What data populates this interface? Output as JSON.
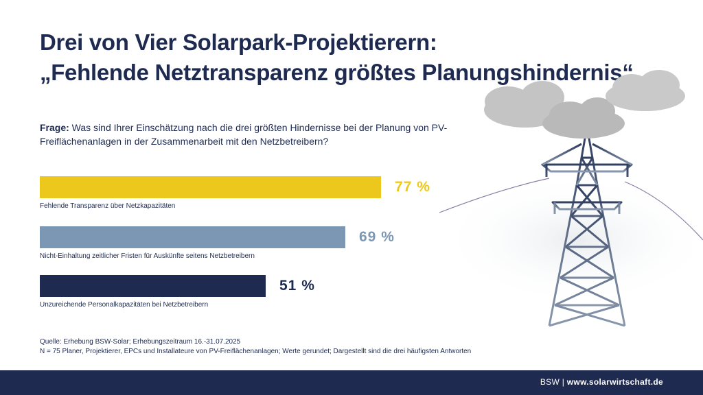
{
  "title": {
    "line1": "Drei von Vier Solarpark-Projektierern:",
    "line2": "„Fehlende Netztransparenz größtes Planungshindernis“"
  },
  "question": {
    "label": "Frage:",
    "text": " Was sind Ihrer Einschätzung nach die drei größten Hindernisse bei der Planung von PV-Freiflächenanlagen in der Zusammenarbeit mit den Netzbetreibern?"
  },
  "chart_data": {
    "type": "bar",
    "orientation": "horizontal",
    "categories": [
      "Fehlende Transparenz über Netzkapazitäten",
      "Nicht-Einhaltung zeitlicher Fristen für Auskünfte seitens Netzbetreibern",
      "Unzureichende Personalkapazitäten bei Netzbetreibern"
    ],
    "values": [
      77,
      69,
      51
    ],
    "value_labels": [
      "77 %",
      "69 %",
      "51 %"
    ],
    "colors": [
      "#ecc81d",
      "#7c97b3",
      "#1e2a4f"
    ],
    "title": "",
    "xlabel": "",
    "ylabel": "",
    "xlim": [
      0,
      100
    ],
    "grid": false,
    "legend": "none"
  },
  "source": {
    "line1": "Quelle: Erhebung BSW-Solar; Erhebungszeitraum 16.-31.07.2025",
    "line2": "N = 75 Planer, Projektierer, EPCs und Installateure von PV-Freiflächenanlagen; Werte gerundet; Dargestellt sind die drei häufigsten Antworten"
  },
  "footer": {
    "brand": "BSW",
    "separator": " | ",
    "url": "www.solarwirtschaft.de"
  },
  "illustration": {
    "icons": [
      "cloud-icon",
      "power-pylon-icon"
    ],
    "colors": {
      "cloud": "#c4c4c4",
      "pylon": "#3b4a6b",
      "mist": "#eef0f2"
    }
  }
}
